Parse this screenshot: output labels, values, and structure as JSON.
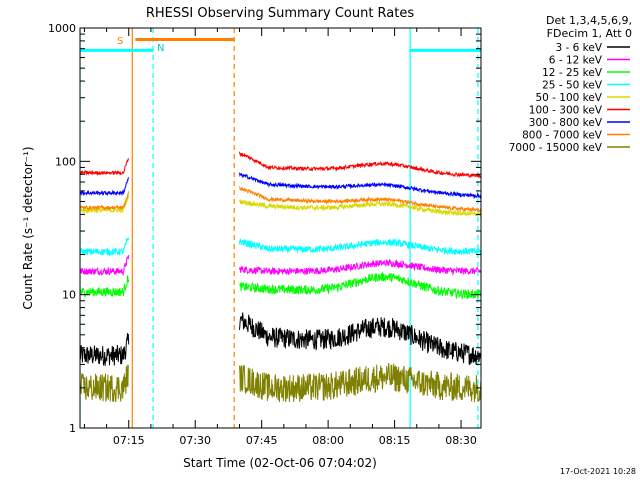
{
  "chart_data": {
    "type": "line",
    "title": "RHESSI Observing Summary Count Rates",
    "xlabel": "Start Time (02-Oct-06 07:04:02)",
    "ylabel": "Count Rate (s⁻¹ detector⁻¹)",
    "y_scale": "log",
    "ylim": [
      1,
      1000
    ],
    "xlim_minutes": [
      0,
      90.5
    ],
    "x_tick_labels": [
      {
        "label": "07:15",
        "minutes": 11
      },
      {
        "label": "07:30",
        "minutes": 26
      },
      {
        "label": "07:45",
        "minutes": 41
      },
      {
        "label": "08:00",
        "minutes": 56
      },
      {
        "label": "08:15",
        "minutes": 71
      },
      {
        "label": "08:30",
        "minutes": 86
      }
    ],
    "y_tick_labels": [
      {
        "label": "1",
        "value": 1
      },
      {
        "label": "10",
        "value": 10
      },
      {
        "label": "100",
        "value": 100
      },
      {
        "label": "1000",
        "value": 1000
      }
    ],
    "legend_header": [
      "Det 1,3,4,5,6,9,",
      "FDecim 1, Att 0"
    ],
    "legend_position": "right",
    "timestamp": "17-Oct-2021 10:28",
    "markers": {
      "S": {
        "label": "S",
        "color": "#ff7f00"
      },
      "N": {
        "label": "N",
        "color": "#00ffff"
      }
    },
    "vertical_lines": [
      {
        "minutes": 0,
        "color": "#00ffff",
        "dash": false
      },
      {
        "minutes": 11.8,
        "color": "#ff7f00",
        "dash": false
      },
      {
        "minutes": 16.5,
        "color": "#00ffff",
        "dash": true
      },
      {
        "minutes": 34.8,
        "color": "#ff7f00",
        "dash": true
      },
      {
        "minutes": 74.5,
        "color": "#00ffff",
        "dash": false
      },
      {
        "minutes": 89.8,
        "color": "#00ffff",
        "dash": true
      }
    ],
    "top_bars": [
      {
        "from": 0,
        "to": 16.5,
        "color": "#00ffff",
        "value": 680
      },
      {
        "from": 12.5,
        "to": 34.8,
        "color": "#ff7f00",
        "value": 820
      },
      {
        "from": 74.5,
        "to": 90.5,
        "color": "#00ffff",
        "value": 680
      }
    ],
    "gap_minutes": [
      11.0,
      36.0
    ],
    "series": [
      {
        "name": "3 - 6 keV",
        "color": "#000000",
        "pre": 3.5,
        "post_start": 6.5,
        "post_mid": 4.8,
        "bump": 1.4,
        "end": 3.5,
        "noise": 0.18
      },
      {
        "name": "6 - 12 keV",
        "color": "#ff00ff",
        "pre": 15,
        "post_start": 15.5,
        "post_mid": 15,
        "bump": 1.15,
        "end": 15,
        "noise": 0.06
      },
      {
        "name": "12 - 25 keV",
        "color": "#00ff00",
        "pre": 10.5,
        "post_start": 11.5,
        "post_mid": 11,
        "bump": 1.3,
        "end": 10,
        "noise": 0.08
      },
      {
        "name": "25 - 50 keV",
        "color": "#00ffff",
        "pre": 21,
        "post_start": 25,
        "post_mid": 22,
        "bump": 1.15,
        "end": 21,
        "noise": 0.06
      },
      {
        "name": "50 - 100 keV",
        "color": "#d9d900",
        "pre": 43,
        "post_start": 50,
        "post_mid": 46,
        "bump": 1.12,
        "end": 40,
        "noise": 0.04
      },
      {
        "name": "100 - 300 keV",
        "color": "#ff0000",
        "pre": 82,
        "post_start": 115,
        "post_mid": 90,
        "bump": 1.15,
        "end": 78,
        "noise": 0.03
      },
      {
        "name": "300 - 800 keV",
        "color": "#0000ff",
        "pre": 58,
        "post_start": 80,
        "post_mid": 67,
        "bump": 1.1,
        "end": 55,
        "noise": 0.03
      },
      {
        "name": "800 - 7000 keV",
        "color": "#ff7f00",
        "pre": 45,
        "post_start": 63,
        "post_mid": 52,
        "bump": 1.1,
        "end": 43,
        "noise": 0.03
      },
      {
        "name": "7000 - 15000 keV",
        "color": "#808000",
        "pre": 2.0,
        "post_start": 2.4,
        "post_mid": 2.0,
        "bump": 1.2,
        "end": 2.0,
        "noise": 0.25
      }
    ]
  }
}
